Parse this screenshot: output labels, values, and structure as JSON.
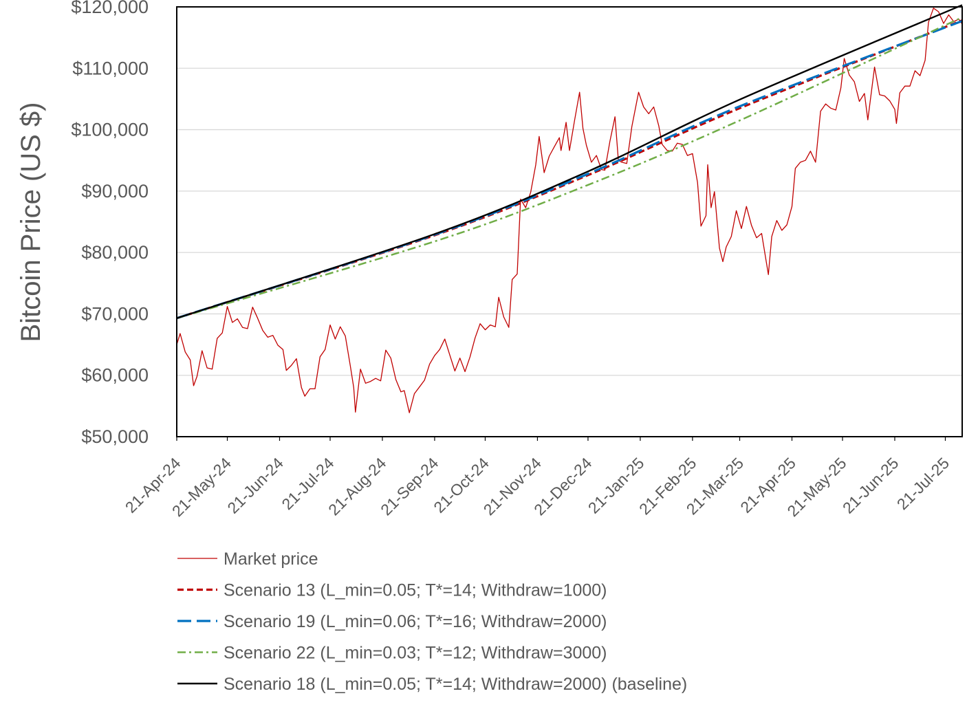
{
  "chart_data": {
    "type": "line",
    "title": "",
    "xlabel": "",
    "ylabel": "Bitcoin Price (US $)",
    "x_range": [
      "2024-04-21",
      "2025-07-31"
    ],
    "ylim": [
      50000,
      120000
    ],
    "y_ticks": [
      "$50,000",
      "$60,000",
      "$70,000",
      "$80,000",
      "$90,000",
      "$100,000",
      "$110,000",
      "$120,000"
    ],
    "x_ticks": [
      {
        "date": "2024-04-21",
        "label": "21-Apr-24"
      },
      {
        "date": "2024-05-21",
        "label": "21-May-24"
      },
      {
        "date": "2024-06-21",
        "label": "21-Jun-24"
      },
      {
        "date": "2024-07-21",
        "label": "21-Jul-24"
      },
      {
        "date": "2024-08-21",
        "label": "21-Aug-24"
      },
      {
        "date": "2024-09-21",
        "label": "21-Sep-24"
      },
      {
        "date": "2024-10-21",
        "label": "21-Oct-24"
      },
      {
        "date": "2024-11-21",
        "label": "21-Nov-24"
      },
      {
        "date": "2024-12-21",
        "label": "21-Dec-24"
      },
      {
        "date": "2025-01-21",
        "label": "21-Jan-25"
      },
      {
        "date": "2025-02-21",
        "label": "21-Feb-25"
      },
      {
        "date": "2025-03-21",
        "label": "21-Mar-25"
      },
      {
        "date": "2025-04-21",
        "label": "21-Apr-25"
      },
      {
        "date": "2025-05-21",
        "label": "21-May-25"
      },
      {
        "date": "2025-06-21",
        "label": "21-Jun-25"
      },
      {
        "date": "2025-07-21",
        "label": "21-Jul-25"
      }
    ],
    "grid": "horizontal",
    "legend_position": "bottom",
    "series": [
      {
        "name": "Market price",
        "color": "#C00000",
        "style": "solid-thin",
        "points": [
          [
            "2024-04-21",
            65000
          ],
          [
            "2024-04-23",
            66800
          ],
          [
            "2024-04-26",
            63800
          ],
          [
            "2024-04-29",
            62500
          ],
          [
            "2024-05-01",
            58300
          ],
          [
            "2024-05-03",
            59800
          ],
          [
            "2024-05-06",
            64000
          ],
          [
            "2024-05-09",
            61200
          ],
          [
            "2024-05-12",
            61000
          ],
          [
            "2024-05-15",
            66000
          ],
          [
            "2024-05-18",
            66900
          ],
          [
            "2024-05-21",
            71200
          ],
          [
            "2024-05-24",
            68600
          ],
          [
            "2024-05-27",
            69200
          ],
          [
            "2024-05-30",
            67800
          ],
          [
            "2024-06-02",
            67600
          ],
          [
            "2024-06-05",
            71100
          ],
          [
            "2024-06-08",
            69300
          ],
          [
            "2024-06-11",
            67300
          ],
          [
            "2024-06-14",
            66200
          ],
          [
            "2024-06-17",
            66500
          ],
          [
            "2024-06-20",
            64900
          ],
          [
            "2024-06-23",
            64200
          ],
          [
            "2024-06-25",
            60800
          ],
          [
            "2024-06-28",
            61600
          ],
          [
            "2024-07-01",
            62700
          ],
          [
            "2024-07-04",
            58000
          ],
          [
            "2024-07-06",
            56600
          ],
          [
            "2024-07-09",
            57800
          ],
          [
            "2024-07-12",
            57800
          ],
          [
            "2024-07-15",
            63000
          ],
          [
            "2024-07-18",
            64200
          ],
          [
            "2024-07-21",
            68200
          ],
          [
            "2024-07-24",
            65900
          ],
          [
            "2024-07-27",
            67900
          ],
          [
            "2024-07-30",
            66400
          ],
          [
            "2024-08-02",
            61500
          ],
          [
            "2024-08-04",
            58000
          ],
          [
            "2024-08-05",
            54000
          ],
          [
            "2024-08-08",
            61000
          ],
          [
            "2024-08-11",
            58700
          ],
          [
            "2024-08-14",
            59000
          ],
          [
            "2024-08-17",
            59500
          ],
          [
            "2024-08-20",
            59100
          ],
          [
            "2024-08-23",
            64100
          ],
          [
            "2024-08-26",
            62800
          ],
          [
            "2024-08-29",
            59300
          ],
          [
            "2024-09-01",
            57300
          ],
          [
            "2024-09-03",
            57500
          ],
          [
            "2024-09-06",
            53900
          ],
          [
            "2024-09-09",
            57000
          ],
          [
            "2024-09-12",
            58100
          ],
          [
            "2024-09-15",
            59200
          ],
          [
            "2024-09-18",
            61800
          ],
          [
            "2024-09-21",
            63200
          ],
          [
            "2024-09-24",
            64200
          ],
          [
            "2024-09-27",
            65900
          ],
          [
            "2024-09-30",
            63300
          ],
          [
            "2024-10-03",
            60700
          ],
          [
            "2024-10-06",
            62800
          ],
          [
            "2024-10-09",
            60600
          ],
          [
            "2024-10-12",
            63000
          ],
          [
            "2024-10-15",
            66100
          ],
          [
            "2024-10-18",
            68400
          ],
          [
            "2024-10-21",
            67400
          ],
          [
            "2024-10-24",
            68200
          ],
          [
            "2024-10-27",
            67900
          ],
          [
            "2024-10-29",
            72700
          ],
          [
            "2024-11-01",
            69500
          ],
          [
            "2024-11-04",
            67800
          ],
          [
            "2024-11-06",
            75600
          ],
          [
            "2024-11-09",
            76500
          ],
          [
            "2024-11-11",
            88700
          ],
          [
            "2024-11-14",
            87300
          ],
          [
            "2024-11-17",
            89800
          ],
          [
            "2024-11-20",
            94300
          ],
          [
            "2024-11-22",
            98900
          ],
          [
            "2024-11-25",
            93000
          ],
          [
            "2024-11-28",
            95700
          ],
          [
            "2024-12-01",
            97200
          ],
          [
            "2024-12-04",
            98700
          ],
          [
            "2024-12-05",
            96600
          ],
          [
            "2024-12-08",
            101200
          ],
          [
            "2024-12-10",
            96600
          ],
          [
            "2024-12-13",
            101500
          ],
          [
            "2024-12-16",
            106100
          ],
          [
            "2024-12-18",
            100200
          ],
          [
            "2024-12-20",
            97500
          ],
          [
            "2024-12-23",
            94700
          ],
          [
            "2024-12-26",
            95800
          ],
          [
            "2024-12-29",
            93500
          ],
          [
            "2024-12-31",
            93400
          ],
          [
            "2025-01-03",
            98100
          ],
          [
            "2025-01-06",
            102100
          ],
          [
            "2025-01-08",
            95000
          ],
          [
            "2025-01-10",
            94700
          ],
          [
            "2025-01-13",
            94500
          ],
          [
            "2025-01-16",
            100500
          ],
          [
            "2025-01-20",
            106100
          ],
          [
            "2025-01-23",
            103700
          ],
          [
            "2025-01-26",
            102600
          ],
          [
            "2025-01-29",
            103700
          ],
          [
            "2025-02-01",
            100600
          ],
          [
            "2025-02-03",
            97600
          ],
          [
            "2025-02-06",
            96600
          ],
          [
            "2025-02-09",
            96500
          ],
          [
            "2025-02-12",
            97800
          ],
          [
            "2025-02-15",
            97600
          ],
          [
            "2025-02-18",
            95800
          ],
          [
            "2025-02-21",
            96100
          ],
          [
            "2025-02-24",
            91400
          ],
          [
            "2025-02-26",
            84300
          ],
          [
            "2025-03-01",
            86000
          ],
          [
            "2025-03-02",
            94300
          ],
          [
            "2025-03-04",
            87300
          ],
          [
            "2025-03-06",
            89900
          ],
          [
            "2025-03-09",
            80700
          ],
          [
            "2025-03-11",
            78500
          ],
          [
            "2025-03-13",
            80900
          ],
          [
            "2025-03-16",
            82600
          ],
          [
            "2025-03-19",
            86800
          ],
          [
            "2025-03-22",
            83900
          ],
          [
            "2025-03-25",
            87500
          ],
          [
            "2025-03-28",
            84400
          ],
          [
            "2025-03-31",
            82400
          ],
          [
            "2025-04-03",
            83100
          ],
          [
            "2025-04-07",
            76400
          ],
          [
            "2025-04-09",
            82600
          ],
          [
            "2025-04-12",
            85200
          ],
          [
            "2025-04-15",
            83600
          ],
          [
            "2025-04-18",
            84500
          ],
          [
            "2025-04-21",
            87500
          ],
          [
            "2025-04-23",
            93700
          ],
          [
            "2025-04-26",
            94700
          ],
          [
            "2025-04-29",
            95000
          ],
          [
            "2025-05-02",
            96500
          ],
          [
            "2025-05-05",
            94700
          ],
          [
            "2025-05-08",
            103000
          ],
          [
            "2025-05-11",
            104200
          ],
          [
            "2025-05-14",
            103500
          ],
          [
            "2025-05-17",
            103200
          ],
          [
            "2025-05-20",
            106800
          ],
          [
            "2025-05-22",
            111600
          ],
          [
            "2025-05-25",
            108900
          ],
          [
            "2025-05-28",
            107800
          ],
          [
            "2025-05-31",
            104600
          ],
          [
            "2025-06-03",
            105900
          ],
          [
            "2025-06-05",
            101600
          ],
          [
            "2025-06-09",
            110200
          ],
          [
            "2025-06-12",
            105700
          ],
          [
            "2025-06-15",
            105500
          ],
          [
            "2025-06-18",
            104700
          ],
          [
            "2025-06-21",
            103300
          ],
          [
            "2025-06-22",
            101000
          ],
          [
            "2025-06-24",
            106000
          ],
          [
            "2025-06-27",
            107100
          ],
          [
            "2025-06-30",
            107100
          ],
          [
            "2025-07-03",
            109600
          ],
          [
            "2025-07-06",
            108800
          ],
          [
            "2025-07-09",
            111300
          ],
          [
            "2025-07-11",
            117500
          ],
          [
            "2025-07-14",
            119800
          ],
          [
            "2025-07-17",
            119200
          ],
          [
            "2025-07-20",
            117300
          ],
          [
            "2025-07-23",
            118700
          ],
          [
            "2025-07-26",
            117600
          ],
          [
            "2025-07-29",
            118000
          ],
          [
            "2025-07-31",
            117200
          ]
        ]
      },
      {
        "name": "Scenario 13 (L_min=0.05; T*=14; Withdraw=1000)",
        "color": "#C00000",
        "style": "dash",
        "points": [
          [
            "2024-04-21",
            69300
          ],
          [
            "2024-09-21",
            82800
          ],
          [
            "2024-12-21",
            92600
          ],
          [
            "2025-03-21",
            103500
          ],
          [
            "2025-07-31",
            117800
          ]
        ]
      },
      {
        "name": "Scenario 19 (L_min=0.06; T*=16; Withdraw=2000)",
        "color": "#0070C0",
        "style": "longdash",
        "points": [
          [
            "2024-04-21",
            69300
          ],
          [
            "2024-09-21",
            82900
          ],
          [
            "2024-12-21",
            92800
          ],
          [
            "2025-03-21",
            103800
          ],
          [
            "2025-07-31",
            117700
          ]
        ]
      },
      {
        "name": "Scenario 22 (L_min=0.03; T*=12; Withdraw=3000)",
        "color": "#70AD47",
        "style": "dashdot",
        "points": [
          [
            "2024-04-21",
            69300
          ],
          [
            "2024-09-21",
            81800
          ],
          [
            "2024-12-21",
            91000
          ],
          [
            "2025-03-21",
            101500
          ],
          [
            "2025-07-31",
            118300
          ]
        ]
      },
      {
        "name": "Scenario 18 (L_min=0.05; T*=14; Withdraw=2000) (baseline)",
        "color": "#000000",
        "style": "solid",
        "points": [
          [
            "2024-04-21",
            69300
          ],
          [
            "2024-09-21",
            83000
          ],
          [
            "2024-12-21",
            93200
          ],
          [
            "2025-03-21",
            104900
          ],
          [
            "2025-07-31",
            120300
          ]
        ]
      }
    ]
  }
}
